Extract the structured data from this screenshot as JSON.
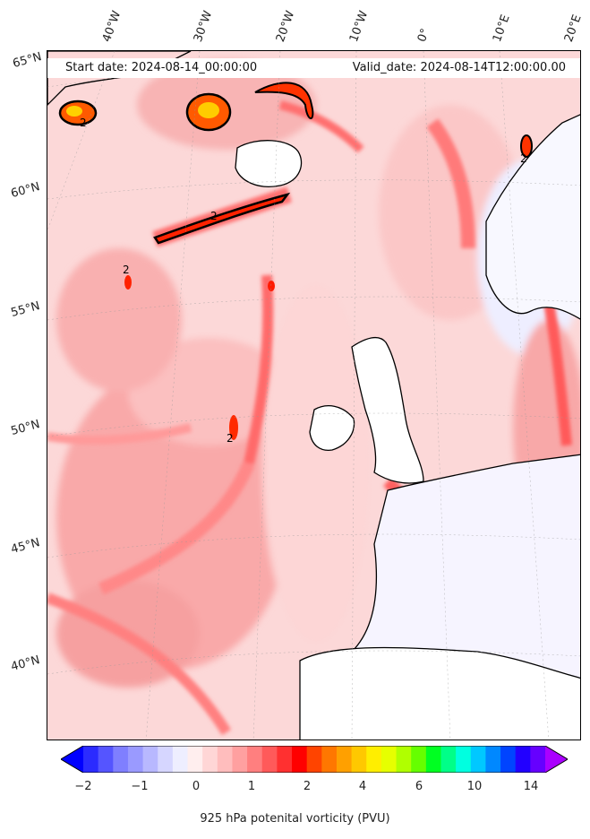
{
  "header": {
    "start_date": "Start date: 2024-08-14_00:00:00",
    "valid_date": "Valid_date: 2024-08-14T12:00:00.00"
  },
  "map": {
    "longitude_labels": [
      "40°W",
      "30°W",
      "20°W",
      "10°W",
      "0°",
      "10°E",
      "20°E"
    ],
    "latitude_labels": [
      "65°N",
      "60°N",
      "55°N",
      "50°N",
      "45°N",
      "40°N"
    ],
    "contour_label": "2"
  },
  "colorbar": {
    "title": "925 hPa potenital vorticity (PVU)",
    "tick_labels": [
      "−2",
      "−1",
      "0",
      "1",
      "2",
      "4",
      "6",
      "10",
      "14"
    ],
    "colors": [
      "#0000ff",
      "#2b2bff",
      "#5555ff",
      "#7f7fff",
      "#9a9aff",
      "#b8b8ff",
      "#d6d6ff",
      "#eeeeff",
      "#ffeeee",
      "#ffd6d6",
      "#ffbdbd",
      "#ffa0a0",
      "#ff7f7f",
      "#ff5a5a",
      "#ff3030",
      "#ff0000",
      "#ff4400",
      "#ff7700",
      "#ffa000",
      "#ffc800",
      "#ffee00",
      "#e6ff00",
      "#b0ff00",
      "#66ff00",
      "#00ff22",
      "#00ff88",
      "#00ffe0",
      "#00c8ff",
      "#0088ff",
      "#0044ff",
      "#2200ff",
      "#6600ff",
      "#aa00ff"
    ]
  }
}
